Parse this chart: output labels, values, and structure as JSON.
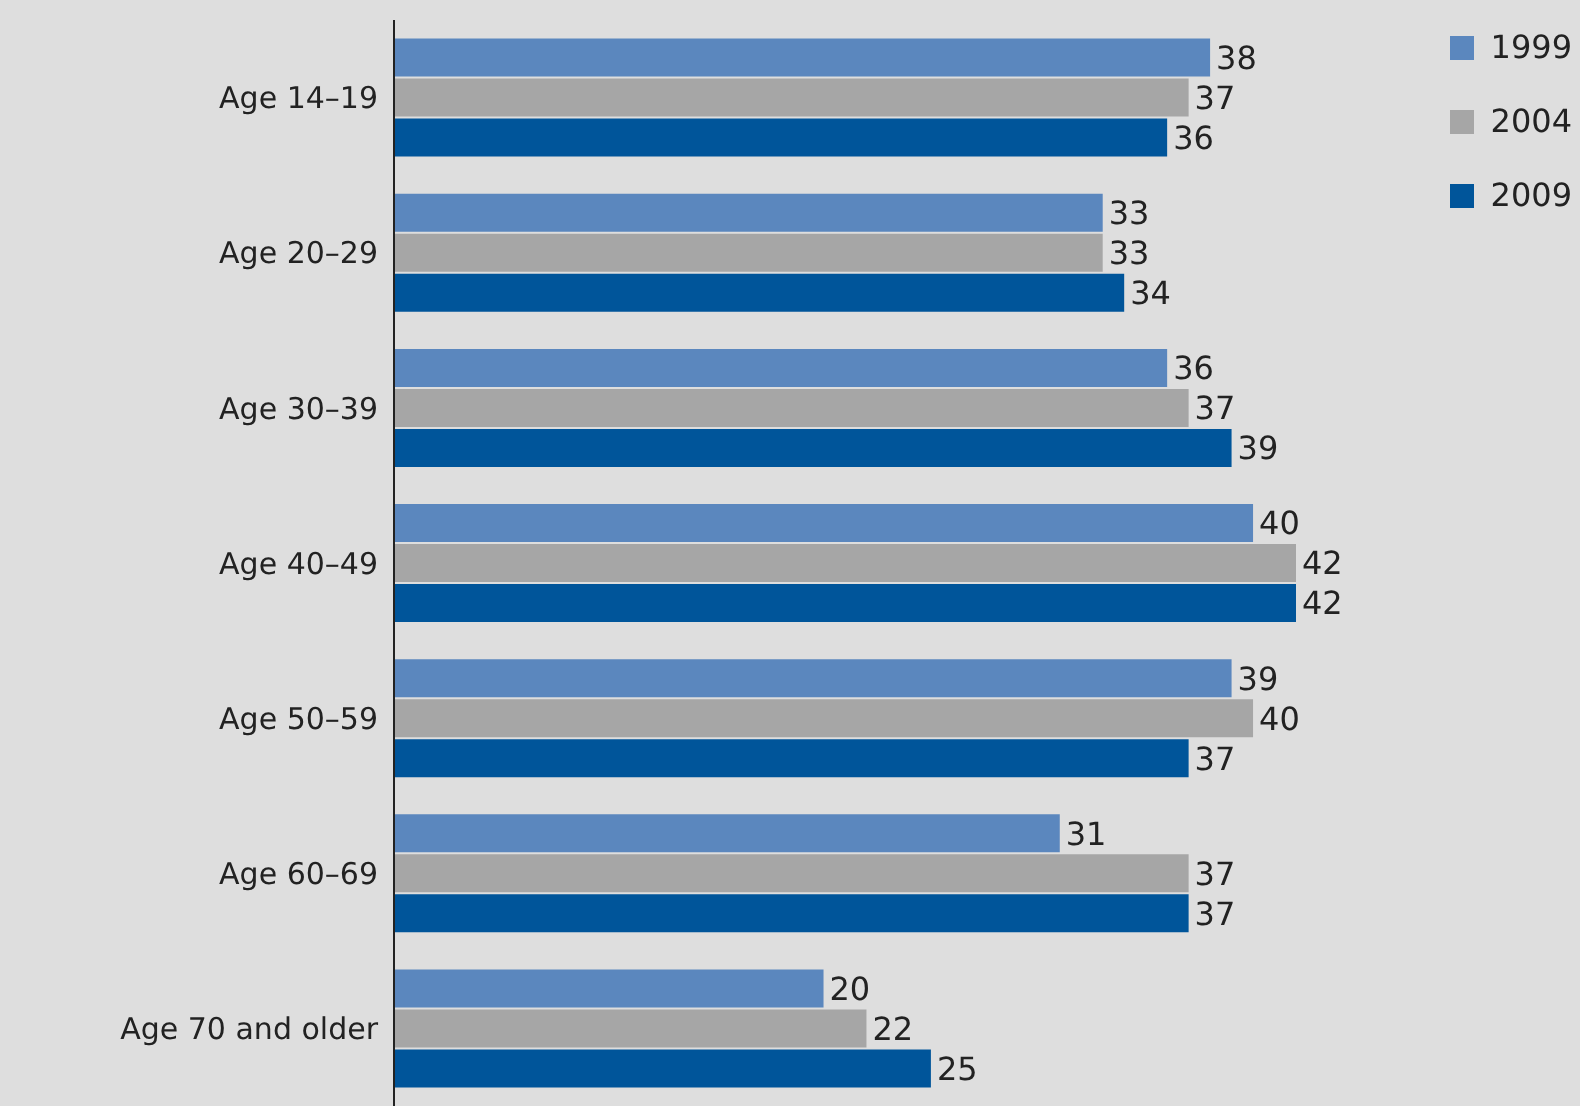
{
  "chart_data": {
    "type": "bar",
    "orientation": "horizontal",
    "categories": [
      "Age 14–19",
      "Age 20–29",
      "Age 30–39",
      "Age 40–49",
      "Age 50–59",
      "Age 60–69",
      "Age 70 and older"
    ],
    "series": [
      {
        "name": "1999",
        "color": "#5b87be",
        "values": [
          38,
          33,
          36,
          40,
          39,
          31,
          20
        ]
      },
      {
        "name": "2004",
        "color": "#a6a6a6",
        "values": [
          37,
          33,
          37,
          42,
          40,
          37,
          22
        ]
      },
      {
        "name": "2009",
        "color": "#00559a",
        "values": [
          36,
          34,
          39,
          42,
          37,
          37,
          25
        ]
      }
    ],
    "data_labels": true,
    "legend": "top right"
  }
}
